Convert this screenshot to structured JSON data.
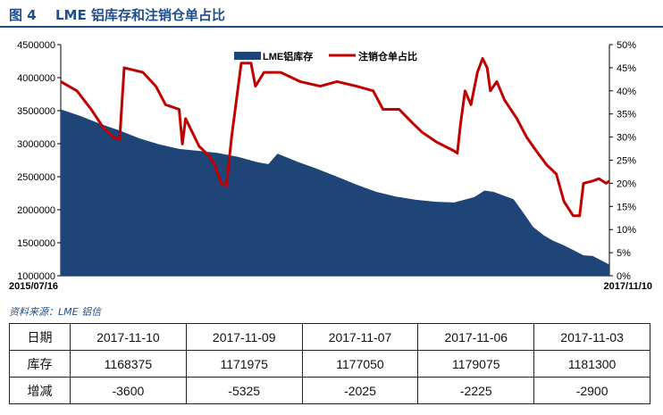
{
  "header": {
    "figure_no": "图 4",
    "title": "LME 铝库存和注销仓单占比"
  },
  "colors": {
    "area": "#1f4477",
    "line": "#c00000",
    "title": "#1f4e8c"
  },
  "chart_data": {
    "type": "area+line",
    "x_start_label": "2015/07/16",
    "x_end_label": "2017/11/10",
    "x_range": [
      "2015-07-16",
      "2017-11-10"
    ],
    "left_axis": {
      "ylim": [
        1000000,
        4500000
      ],
      "ticks": [
        "1000000",
        "1500000",
        "2000000",
        "2500000",
        "3000000",
        "3500000",
        "4000000",
        "4500000"
      ]
    },
    "right_axis": {
      "ylim": [
        0,
        50
      ],
      "ticks": [
        "0%",
        "5%",
        "10%",
        "15%",
        "20%",
        "25%",
        "30%",
        "35%",
        "40%",
        "45%",
        "50%"
      ]
    },
    "legend": {
      "placement": "top-center"
    },
    "series": [
      {
        "name": "LME铝库存",
        "axis": "left",
        "style": "area",
        "points": [
          [
            "2015-07-16",
            3520000
          ],
          [
            "2015-08-15",
            3420000
          ],
          [
            "2015-09-15",
            3300000
          ],
          [
            "2015-10-15",
            3200000
          ],
          [
            "2015-11-15",
            3080000
          ],
          [
            "2015-12-15",
            2990000
          ],
          [
            "2016-01-15",
            2920000
          ],
          [
            "2016-02-15",
            2890000
          ],
          [
            "2016-03-15",
            2860000
          ],
          [
            "2016-04-15",
            2800000
          ],
          [
            "2016-05-15",
            2720000
          ],
          [
            "2016-06-01",
            2690000
          ],
          [
            "2016-06-15",
            2850000
          ],
          [
            "2016-07-15",
            2730000
          ],
          [
            "2016-08-15",
            2620000
          ],
          [
            "2016-09-15",
            2500000
          ],
          [
            "2016-10-15",
            2380000
          ],
          [
            "2016-11-15",
            2270000
          ],
          [
            "2016-12-15",
            2200000
          ],
          [
            "2017-01-15",
            2150000
          ],
          [
            "2017-02-15",
            2120000
          ],
          [
            "2017-03-15",
            2110000
          ],
          [
            "2017-04-15",
            2190000
          ],
          [
            "2017-05-01",
            2290000
          ],
          [
            "2017-05-15",
            2270000
          ],
          [
            "2017-06-15",
            2160000
          ],
          [
            "2017-07-01",
            1940000
          ],
          [
            "2017-07-15",
            1740000
          ],
          [
            "2017-08-01",
            1610000
          ],
          [
            "2017-08-15",
            1530000
          ],
          [
            "2017-09-01",
            1460000
          ],
          [
            "2017-09-15",
            1390000
          ],
          [
            "2017-10-01",
            1310000
          ],
          [
            "2017-10-15",
            1300000
          ],
          [
            "2017-11-10",
            1168375
          ]
        ]
      },
      {
        "name": "注销仓单占比",
        "axis": "right",
        "style": "line",
        "points": [
          [
            "2015-07-16",
            42.0
          ],
          [
            "2015-08-10",
            40.0
          ],
          [
            "2015-09-01",
            36.0
          ],
          [
            "2015-09-20",
            32.0
          ],
          [
            "2015-10-05",
            30.0
          ],
          [
            "2015-10-15",
            29.5
          ],
          [
            "2015-10-22",
            45.0
          ],
          [
            "2015-11-20",
            44.0
          ],
          [
            "2015-12-10",
            41.0
          ],
          [
            "2015-12-25",
            37.0
          ],
          [
            "2016-01-15",
            36.0
          ],
          [
            "2016-01-20",
            28.5
          ],
          [
            "2016-01-25",
            34.0
          ],
          [
            "2016-02-15",
            28.0
          ],
          [
            "2016-03-01",
            26.0
          ],
          [
            "2016-03-10",
            24.0
          ],
          [
            "2016-03-20",
            20.0
          ],
          [
            "2016-03-28",
            19.5
          ],
          [
            "2016-04-05",
            30.0
          ],
          [
            "2016-04-20",
            46.0
          ],
          [
            "2016-05-05",
            46.0
          ],
          [
            "2016-05-12",
            41.0
          ],
          [
            "2016-05-25",
            44.0
          ],
          [
            "2016-06-20",
            44.0
          ],
          [
            "2016-07-20",
            42.0
          ],
          [
            "2016-08-20",
            41.0
          ],
          [
            "2016-09-15",
            42.0
          ],
          [
            "2016-10-15",
            41.0
          ],
          [
            "2016-11-10",
            40.0
          ],
          [
            "2016-11-25",
            36.0
          ],
          [
            "2016-12-20",
            36.0
          ],
          [
            "2017-01-10",
            33.0
          ],
          [
            "2017-01-25",
            31.0
          ],
          [
            "2017-02-15",
            29.0
          ],
          [
            "2017-03-01",
            28.0
          ],
          [
            "2017-03-15",
            27.0
          ],
          [
            "2017-03-20",
            26.5
          ],
          [
            "2017-03-25",
            33.0
          ],
          [
            "2017-04-01",
            40.0
          ],
          [
            "2017-04-10",
            37.0
          ],
          [
            "2017-04-20",
            44.0
          ],
          [
            "2017-04-28",
            47.0
          ],
          [
            "2017-05-05",
            45.0
          ],
          [
            "2017-05-10",
            40.0
          ],
          [
            "2017-05-20",
            42.0
          ],
          [
            "2017-06-01",
            38.0
          ],
          [
            "2017-06-20",
            34.0
          ],
          [
            "2017-07-05",
            30.0
          ],
          [
            "2017-07-20",
            27.0
          ],
          [
            "2017-08-05",
            24.0
          ],
          [
            "2017-08-20",
            22.0
          ],
          [
            "2017-09-01",
            16.0
          ],
          [
            "2017-09-15",
            13.0
          ],
          [
            "2017-09-25",
            13.0
          ],
          [
            "2017-10-01",
            20.0
          ],
          [
            "2017-10-15",
            20.5
          ],
          [
            "2017-10-25",
            21.0
          ],
          [
            "2017-11-05",
            20.0
          ],
          [
            "2017-11-10",
            20.5
          ]
        ]
      }
    ]
  },
  "source": "资料来源：LME   铝信",
  "table": {
    "rows": [
      {
        "label": "日期",
        "cells": [
          "2017-11-10",
          "2017-11-09",
          "2017-11-07",
          "2017-11-06",
          "2017-11-03"
        ]
      },
      {
        "label": "库存",
        "cells": [
          "1168375",
          "1171975",
          "1177050",
          "1179075",
          "1181300"
        ]
      },
      {
        "label": "增减",
        "cells": [
          "-3600",
          "-5325",
          "-2025",
          "-2225",
          "-2900"
        ]
      }
    ]
  }
}
